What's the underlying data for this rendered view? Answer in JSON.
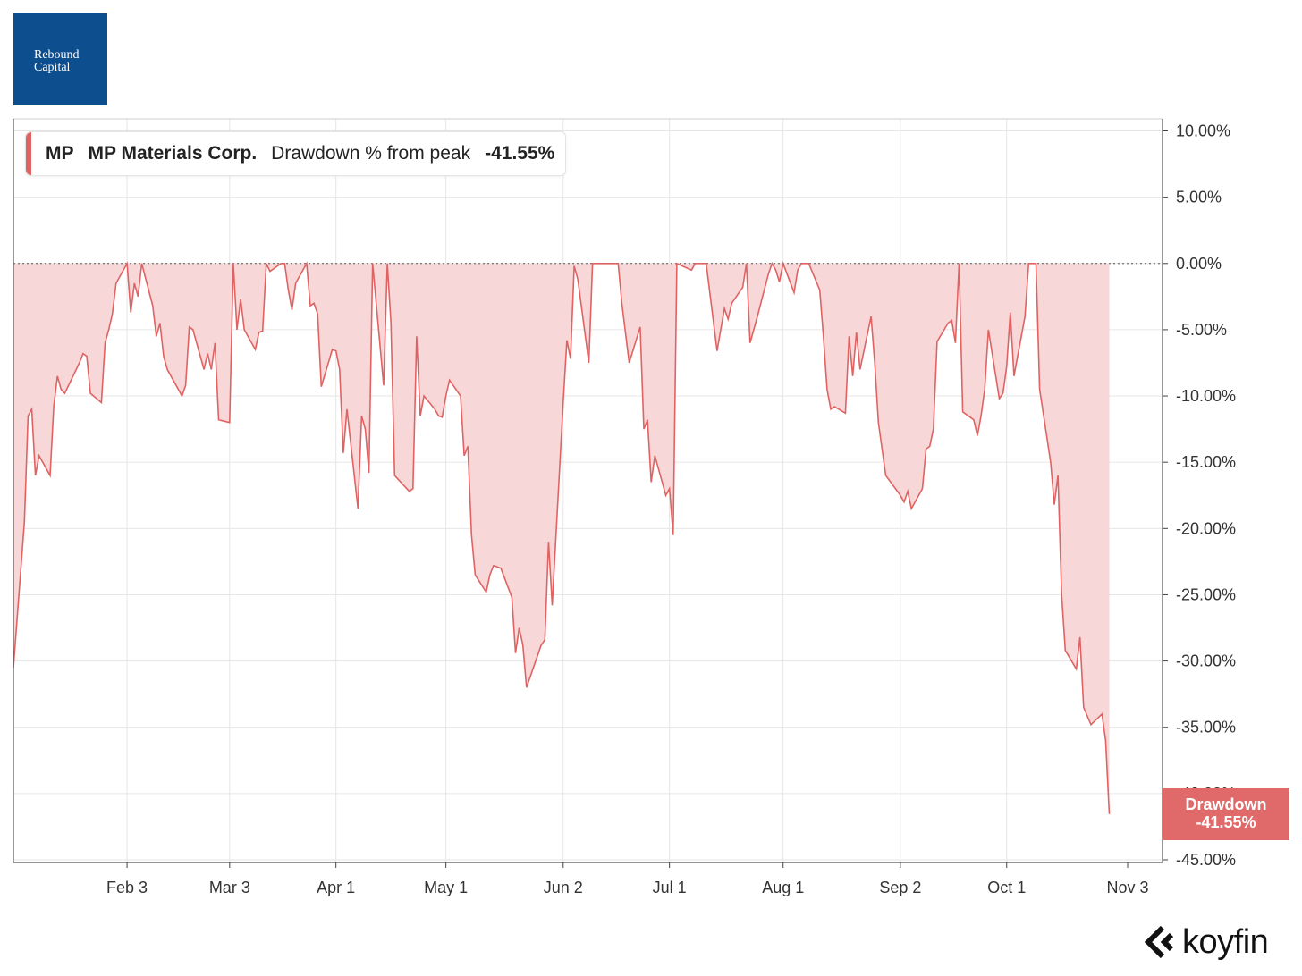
{
  "logo": {
    "line1": "Rebound",
    "line2": "Capital"
  },
  "legend": {
    "ticker": "MP",
    "name": "MP Materials Corp.",
    "metric": "Drawdown % from peak",
    "value": "-41.55%"
  },
  "last_value_badge": {
    "label": "Drawdown",
    "value": "-41.55%"
  },
  "brand": {
    "name": "koyfin",
    "icon": "koyfin-logo-icon"
  },
  "colors": {
    "series_line": "#e06363",
    "series_fill": "#f7d7d8",
    "badge": "#e06a6a",
    "logo_bg": "#0d4f8e",
    "grid": "#e6e6e6"
  },
  "chart_data": {
    "type": "area",
    "title": "",
    "xlabel": "",
    "ylabel": "",
    "ylim": [
      -45,
      10
    ],
    "y_ticks": [
      "10.00%",
      "5.00%",
      "0.00%",
      "-5.00%",
      "-10.00%",
      "-15.00%",
      "-20.00%",
      "-25.00%",
      "-30.00%",
      "-35.00%",
      "-40.00%",
      "-45.00%"
    ],
    "x_ticks": [
      "Feb 3",
      "Mar 3",
      "Apr 1",
      "May 1",
      "Jun 2",
      "Jul 1",
      "Aug 1",
      "Sep 2",
      "Oct 1",
      "Nov 3"
    ],
    "x_range": [
      "2025-01-03",
      "2025-11-03"
    ],
    "reference_line": 0,
    "grid": true,
    "legend_position": "top-left",
    "series": [
      {
        "name": "MP Materials Corp.",
        "points": [
          [
            "2025-01-03",
            -30.5
          ],
          [
            "2025-01-06",
            -19.5
          ],
          [
            "2025-01-07",
            -11.5
          ],
          [
            "2025-01-08",
            -11.0
          ],
          [
            "2025-01-09",
            -16.0
          ],
          [
            "2025-01-10",
            -14.5
          ],
          [
            "2025-01-13",
            -16.0
          ],
          [
            "2025-01-14",
            -10.8
          ],
          [
            "2025-01-15",
            -8.5
          ],
          [
            "2025-01-16",
            -9.5
          ],
          [
            "2025-01-17",
            -9.8
          ],
          [
            "2025-01-21",
            -7.5
          ],
          [
            "2025-01-22",
            -6.8
          ],
          [
            "2025-01-23",
            -7.0
          ],
          [
            "2025-01-24",
            -9.8
          ],
          [
            "2025-01-27",
            -10.5
          ],
          [
            "2025-01-28",
            -6.0
          ],
          [
            "2025-01-29",
            -5.0
          ],
          [
            "2025-01-30",
            -3.8
          ],
          [
            "2025-01-31",
            -1.5
          ],
          [
            "2025-02-03",
            0.0
          ],
          [
            "2025-02-04",
            -3.7
          ],
          [
            "2025-02-05",
            -1.5
          ],
          [
            "2025-02-06",
            -2.5
          ],
          [
            "2025-02-07",
            0.0
          ],
          [
            "2025-02-10",
            -3.2
          ],
          [
            "2025-02-11",
            -5.5
          ],
          [
            "2025-02-12",
            -4.5
          ],
          [
            "2025-02-13",
            -7.0
          ],
          [
            "2025-02-14",
            -8.0
          ],
          [
            "2025-02-18",
            -10.0
          ],
          [
            "2025-02-19",
            -9.2
          ],
          [
            "2025-02-20",
            -4.8
          ],
          [
            "2025-02-21",
            -5.0
          ],
          [
            "2025-02-24",
            -8.0
          ],
          [
            "2025-02-25",
            -6.8
          ],
          [
            "2025-02-26",
            -8.0
          ],
          [
            "2025-02-27",
            -6.0
          ],
          [
            "2025-02-28",
            -11.8
          ],
          [
            "2025-03-03",
            -12.0
          ],
          [
            "2025-03-04",
            0.0
          ],
          [
            "2025-03-05",
            -5.0
          ],
          [
            "2025-03-06",
            -2.7
          ],
          [
            "2025-03-07",
            -5.0
          ],
          [
            "2025-03-10",
            -6.5
          ],
          [
            "2025-03-11",
            -5.2
          ],
          [
            "2025-03-12",
            -5.1
          ],
          [
            "2025-03-13",
            0.0
          ],
          [
            "2025-03-14",
            -0.6
          ],
          [
            "2025-03-17",
            0.0
          ],
          [
            "2025-03-18",
            0.0
          ],
          [
            "2025-03-19",
            -2.0
          ],
          [
            "2025-03-20",
            -3.5
          ],
          [
            "2025-03-21",
            -1.5
          ],
          [
            "2025-03-24",
            0.0
          ],
          [
            "2025-03-25",
            -3.2
          ],
          [
            "2025-03-26",
            -3.0
          ],
          [
            "2025-03-27",
            -3.8
          ],
          [
            "2025-03-28",
            -9.3
          ],
          [
            "2025-03-31",
            -6.5
          ],
          [
            "2025-04-01",
            -6.6
          ],
          [
            "2025-04-02",
            -8.0
          ],
          [
            "2025-04-03",
            -14.3
          ],
          [
            "2025-04-04",
            -11.0
          ],
          [
            "2025-04-07",
            -18.5
          ],
          [
            "2025-04-08",
            -11.5
          ],
          [
            "2025-04-09",
            -12.5
          ],
          [
            "2025-04-10",
            -15.8
          ],
          [
            "2025-04-11",
            0.0
          ],
          [
            "2025-04-14",
            -9.2
          ],
          [
            "2025-04-15",
            0.0
          ],
          [
            "2025-04-16",
            -4.5
          ],
          [
            "2025-04-17",
            -16.0
          ],
          [
            "2025-04-21",
            -17.2
          ],
          [
            "2025-04-22",
            -17.0
          ],
          [
            "2025-04-23",
            -5.5
          ],
          [
            "2025-04-24",
            -11.5
          ],
          [
            "2025-04-25",
            -10.0
          ],
          [
            "2025-04-28",
            -11.0
          ],
          [
            "2025-04-29",
            -11.5
          ],
          [
            "2025-04-30",
            -11.6
          ],
          [
            "2025-05-01",
            -10.0
          ],
          [
            "2025-05-02",
            -8.8
          ],
          [
            "2025-05-05",
            -10.0
          ],
          [
            "2025-05-06",
            -14.5
          ],
          [
            "2025-05-07",
            -13.8
          ],
          [
            "2025-05-08",
            -20.5
          ],
          [
            "2025-05-09",
            -23.5
          ],
          [
            "2025-05-12",
            -24.8
          ],
          [
            "2025-05-13",
            -23.5
          ],
          [
            "2025-05-14",
            -22.8
          ],
          [
            "2025-05-15",
            -22.9
          ],
          [
            "2025-05-16",
            -23.0
          ],
          [
            "2025-05-19",
            -25.2
          ],
          [
            "2025-05-20",
            -29.4
          ],
          [
            "2025-05-21",
            -27.5
          ],
          [
            "2025-05-22",
            -28.8
          ],
          [
            "2025-05-23",
            -32.0
          ],
          [
            "2025-05-27",
            -28.8
          ],
          [
            "2025-05-28",
            -28.4
          ],
          [
            "2025-05-29",
            -21.0
          ],
          [
            "2025-05-30",
            -25.8
          ],
          [
            "2025-06-02",
            -10.5
          ],
          [
            "2025-06-03",
            -5.8
          ],
          [
            "2025-06-04",
            -7.2
          ],
          [
            "2025-06-05",
            -0.2
          ],
          [
            "2025-06-06",
            -1.2
          ],
          [
            "2025-06-09",
            -7.5
          ],
          [
            "2025-06-10",
            0.0
          ],
          [
            "2025-06-11",
            0.0
          ],
          [
            "2025-06-12",
            0.0
          ],
          [
            "2025-06-13",
            0.0
          ],
          [
            "2025-06-16",
            0.0
          ],
          [
            "2025-06-17",
            0.0
          ],
          [
            "2025-06-18",
            -3.0
          ],
          [
            "2025-06-20",
            -7.5
          ],
          [
            "2025-06-23",
            -4.8
          ],
          [
            "2025-06-24",
            -12.5
          ],
          [
            "2025-06-25",
            -11.8
          ],
          [
            "2025-06-26",
            -16.5
          ],
          [
            "2025-06-27",
            -14.5
          ],
          [
            "2025-06-30",
            -17.5
          ],
          [
            "2025-07-01",
            -17.0
          ],
          [
            "2025-07-02",
            -20.5
          ],
          [
            "2025-07-03",
            0.0
          ],
          [
            "2025-07-07",
            -0.5
          ],
          [
            "2025-07-08",
            0.0
          ],
          [
            "2025-07-09",
            0.0
          ],
          [
            "2025-07-10",
            0.0
          ],
          [
            "2025-07-11",
            0.0
          ],
          [
            "2025-07-14",
            -6.6
          ],
          [
            "2025-07-15",
            -5.0
          ],
          [
            "2025-07-16",
            -3.4
          ],
          [
            "2025-07-17",
            -4.2
          ],
          [
            "2025-07-18",
            -3.0
          ],
          [
            "2025-07-21",
            -1.8
          ],
          [
            "2025-07-22",
            0.0
          ],
          [
            "2025-07-23",
            -6.0
          ],
          [
            "2025-07-24",
            -5.0
          ],
          [
            "2025-07-25",
            -4.0
          ],
          [
            "2025-07-28",
            -0.8
          ],
          [
            "2025-07-29",
            0.0
          ],
          [
            "2025-07-30",
            -0.5
          ],
          [
            "2025-07-31",
            -1.4
          ],
          [
            "2025-08-01",
            0.0
          ],
          [
            "2025-08-04",
            -2.2
          ],
          [
            "2025-08-05",
            -0.5
          ],
          [
            "2025-08-06",
            0.0
          ],
          [
            "2025-08-07",
            0.0
          ],
          [
            "2025-08-08",
            0.0
          ],
          [
            "2025-08-11",
            -2.0
          ],
          [
            "2025-08-12",
            -5.5
          ],
          [
            "2025-08-13",
            -9.5
          ],
          [
            "2025-08-14",
            -11.0
          ],
          [
            "2025-08-15",
            -10.8
          ],
          [
            "2025-08-18",
            -11.3
          ],
          [
            "2025-08-19",
            -5.5
          ],
          [
            "2025-08-20",
            -8.5
          ],
          [
            "2025-08-21",
            -5.2
          ],
          [
            "2025-08-22",
            -8.0
          ],
          [
            "2025-08-25",
            -4.0
          ],
          [
            "2025-08-26",
            -7.5
          ],
          [
            "2025-08-27",
            -12.0
          ],
          [
            "2025-08-28",
            -14.0
          ],
          [
            "2025-08-29",
            -16.0
          ],
          [
            "2025-09-02",
            -17.5
          ],
          [
            "2025-09-03",
            -18.0
          ],
          [
            "2025-09-04",
            -17.2
          ],
          [
            "2025-09-05",
            -18.5
          ],
          [
            "2025-09-08",
            -17.0
          ],
          [
            "2025-09-09",
            -14.0
          ],
          [
            "2025-09-10",
            -13.8
          ],
          [
            "2025-09-11",
            -12.5
          ],
          [
            "2025-09-12",
            -5.9
          ],
          [
            "2025-09-15",
            -4.5
          ],
          [
            "2025-09-16",
            -4.3
          ],
          [
            "2025-09-17",
            -6.0
          ],
          [
            "2025-09-18",
            0.0
          ],
          [
            "2025-09-19",
            -11.2
          ],
          [
            "2025-09-22",
            -11.8
          ],
          [
            "2025-09-23",
            -13.0
          ],
          [
            "2025-09-24",
            -11.5
          ],
          [
            "2025-09-25",
            -9.5
          ],
          [
            "2025-09-26",
            -5.0
          ],
          [
            "2025-09-29",
            -10.2
          ],
          [
            "2025-09-30",
            -9.8
          ],
          [
            "2025-10-01",
            -7.8
          ],
          [
            "2025-10-02",
            -3.7
          ],
          [
            "2025-10-03",
            -8.5
          ],
          [
            "2025-10-06",
            -4.0
          ],
          [
            "2025-10-07",
            0.0
          ],
          [
            "2025-10-08",
            0.0
          ],
          [
            "2025-10-09",
            0.0
          ],
          [
            "2025-10-10",
            -9.5
          ],
          [
            "2025-10-13",
            -15.0
          ],
          [
            "2025-10-14",
            -18.2
          ],
          [
            "2025-10-15",
            -16.0
          ],
          [
            "2025-10-16",
            -25.0
          ],
          [
            "2025-10-17",
            -29.2
          ],
          [
            "2025-10-20",
            -30.6
          ],
          [
            "2025-10-21",
            -28.2
          ],
          [
            "2025-10-22",
            -33.5
          ],
          [
            "2025-10-24",
            -34.8
          ],
          [
            "2025-10-27",
            -34.0
          ],
          [
            "2025-10-28",
            -36.0
          ],
          [
            "2025-10-29",
            -41.55
          ]
        ]
      }
    ]
  }
}
